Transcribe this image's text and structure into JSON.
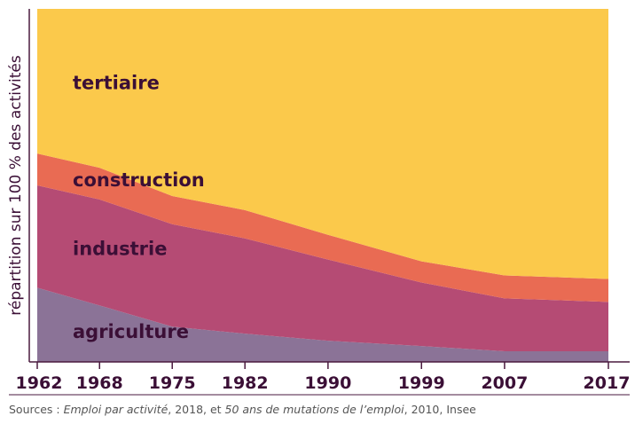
{
  "chart_data": {
    "type": "area",
    "stacked": true,
    "normalized_percent": true,
    "x": [
      "1962",
      "1968",
      "1975",
      "1982",
      "1990",
      "1999",
      "2007",
      "2017"
    ],
    "ylabel": "répartition sur 100 % des activités",
    "ylim": [
      0,
      100
    ],
    "grid": false,
    "series": [
      {
        "name": "agriculture",
        "values": [
          21,
          16,
          10,
          8,
          6,
          4.5,
          3,
          3
        ]
      },
      {
        "name": "industrie",
        "values": [
          29,
          30,
          29,
          27,
          23,
          18,
          15,
          14
        ]
      },
      {
        "name": "construction",
        "values": [
          9,
          9,
          8,
          8,
          7,
          6,
          6.5,
          6.5
        ]
      },
      {
        "name": "tertiaire",
        "values": [
          41,
          45,
          53,
          57,
          64,
          71.5,
          75.5,
          76.5
        ]
      }
    ],
    "colors": {
      "agriculture": "#8b7397",
      "industrie": "#b54b74",
      "construction": "#e96b53",
      "tertiaire": "#fbc94b",
      "text": "#3b0f36",
      "axis": "#4a1a3f"
    }
  },
  "source": {
    "prefix": "Sources : ",
    "ref1": "Emploi par activité",
    "mid1": ", 2018, et ",
    "ref2": "50 ans de mutations de l’emploi",
    "suffix": ", 2010, Insee"
  }
}
